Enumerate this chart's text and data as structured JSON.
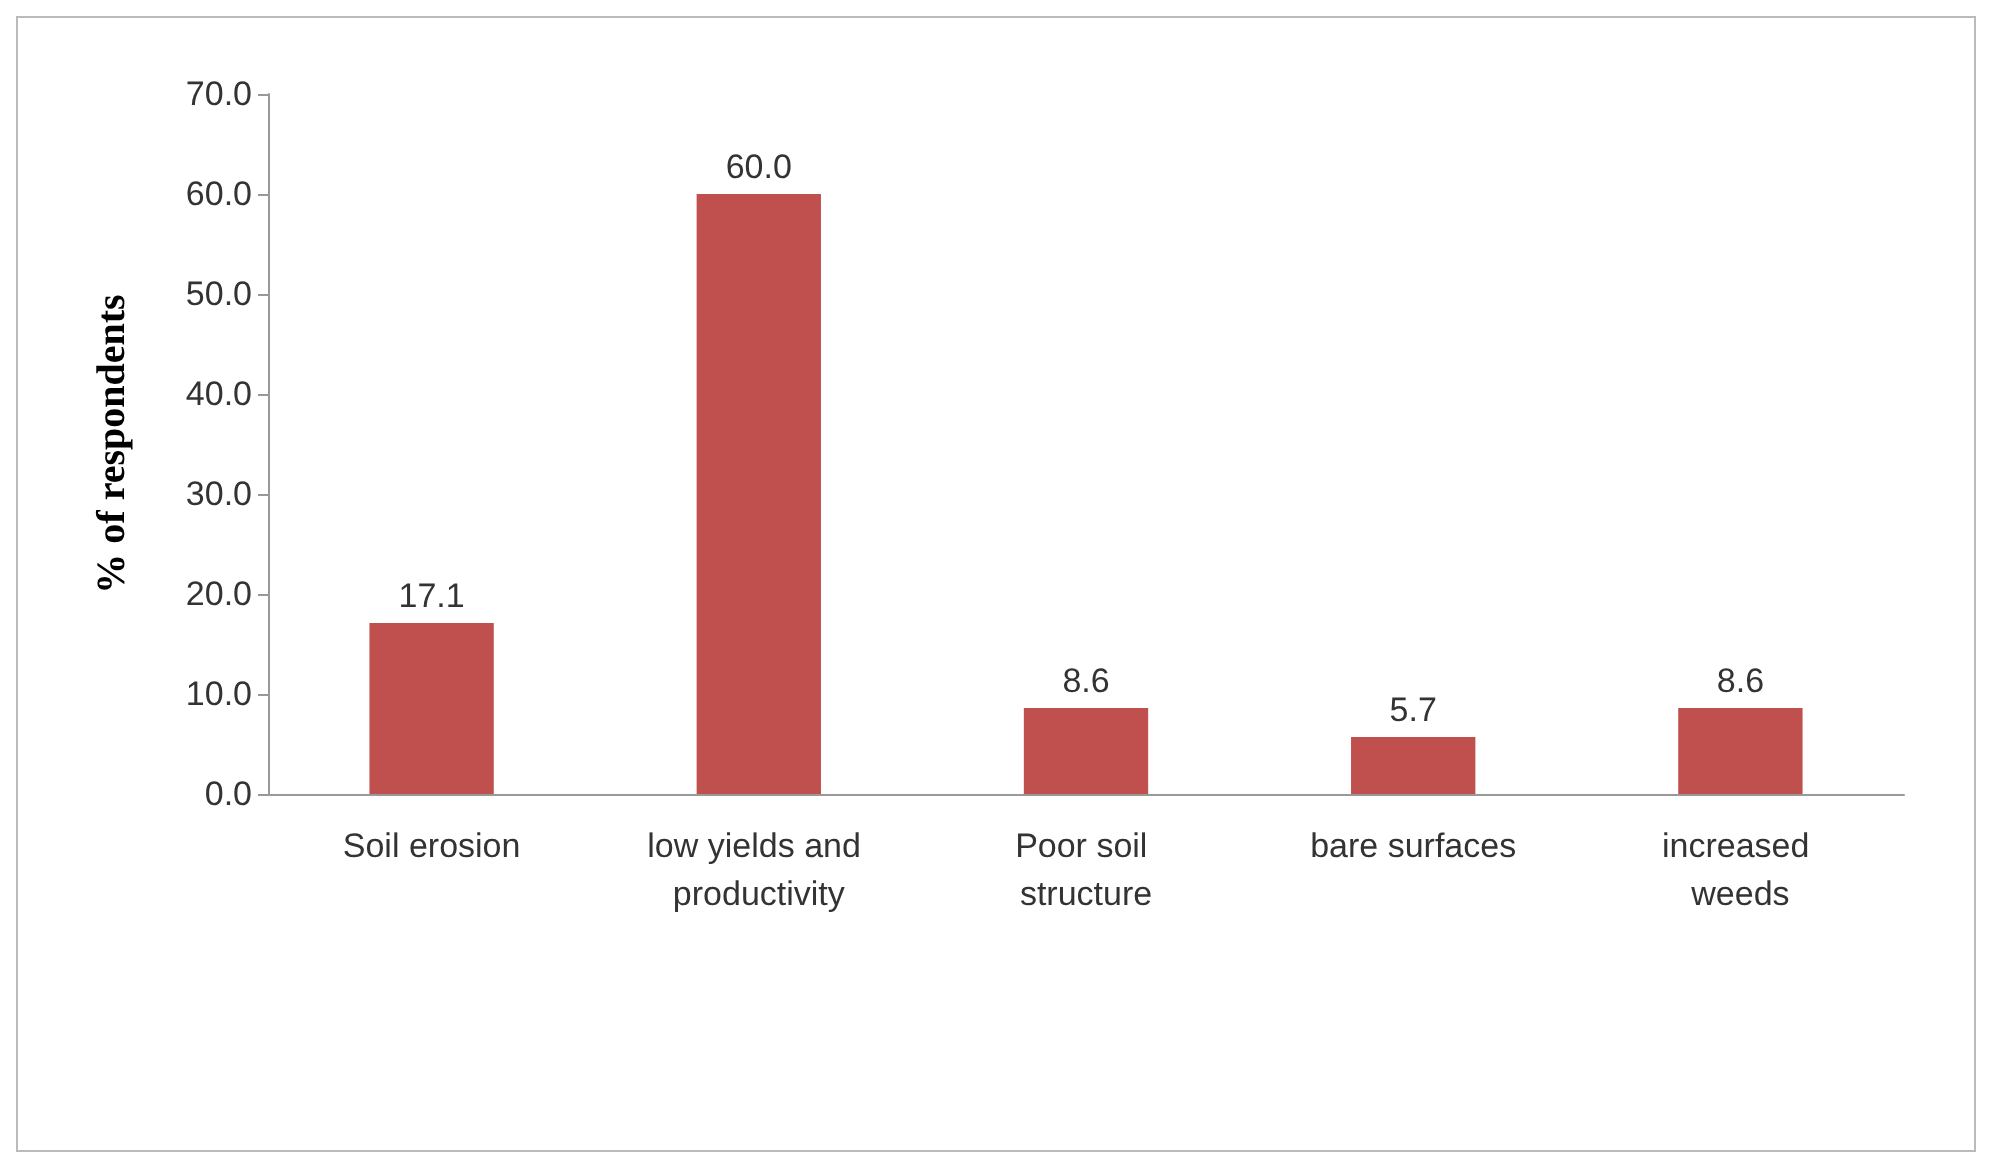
{
  "chart_data": {
    "type": "bar",
    "ylabel": "% of respondents",
    "categories": [
      "Soil erosion",
      "low yields and productivity",
      "Poor soil structure",
      "bare surfaces",
      "increased weeds"
    ],
    "values": [
      17.1,
      60.0,
      8.6,
      5.7,
      8.6
    ],
    "value_labels": [
      "17.1",
      "60.0",
      "8.6",
      "5.7",
      "8.6"
    ],
    "color": "#c0504d",
    "ylim": [
      0,
      70
    ],
    "yticks": [
      {
        "value": 0,
        "label": "0.0"
      },
      {
        "value": 10,
        "label": "10.0"
      },
      {
        "value": 20,
        "label": "20.0"
      },
      {
        "value": 30,
        "label": "30.0"
      },
      {
        "value": 40,
        "label": "40.0"
      },
      {
        "value": 50,
        "label": "50.0"
      },
      {
        "value": 60,
        "label": "60.0"
      },
      {
        "value": 70,
        "label": "70.0"
      }
    ],
    "orientation": "vertical"
  }
}
